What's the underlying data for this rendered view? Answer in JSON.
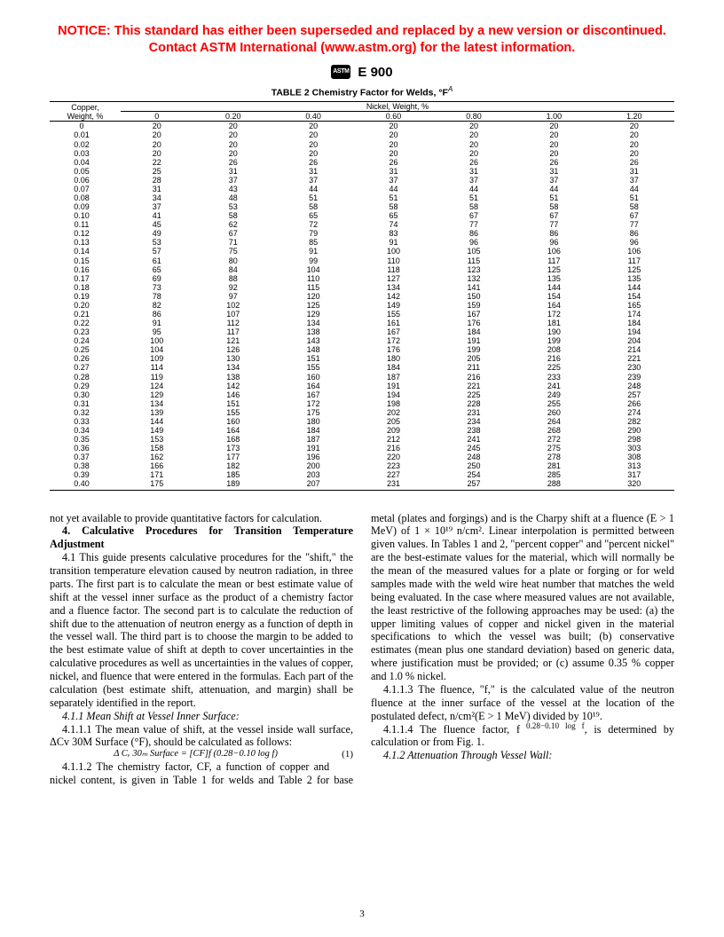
{
  "notice": {
    "line1": "NOTICE: This standard has either been superseded and replaced by a new version or discontinued.",
    "line2": "Contact ASTM International (www.astm.org) for the latest information."
  },
  "logo_text": "ASTM",
  "standard_number": "E 900",
  "table": {
    "caption": "TABLE 2  Chemistry Factor for Welds, °F",
    "caption_sup": "A",
    "row_label_l1": "Copper,",
    "row_label_l2": "Weight, %",
    "col_group_label": "Nickel, Weight, %",
    "nickel_headers": [
      "0",
      "0.20",
      "0.40",
      "0.60",
      "0.80",
      "1.00",
      "1.20"
    ],
    "rows": [
      {
        "cu": "0",
        "v": [
          "20",
          "20",
          "20",
          "20",
          "20",
          "20",
          "20"
        ]
      },
      {
        "cu": "0.01",
        "v": [
          "20",
          "20",
          "20",
          "20",
          "20",
          "20",
          "20"
        ]
      },
      {
        "cu": "0.02",
        "v": [
          "20",
          "20",
          "20",
          "20",
          "20",
          "20",
          "20"
        ]
      },
      {
        "cu": "0.03",
        "v": [
          "20",
          "20",
          "20",
          "20",
          "20",
          "20",
          "20"
        ]
      },
      {
        "cu": "0.04",
        "v": [
          "22",
          "26",
          "26",
          "26",
          "26",
          "26",
          "26"
        ]
      },
      {
        "cu": "0.05",
        "v": [
          "25",
          "31",
          "31",
          "31",
          "31",
          "31",
          "31"
        ]
      },
      {
        "cu": "0.06",
        "v": [
          "28",
          "37",
          "37",
          "37",
          "37",
          "37",
          "37"
        ]
      },
      {
        "cu": "0.07",
        "v": [
          "31",
          "43",
          "44",
          "44",
          "44",
          "44",
          "44"
        ]
      },
      {
        "cu": "0.08",
        "v": [
          "34",
          "48",
          "51",
          "51",
          "51",
          "51",
          "51"
        ]
      },
      {
        "cu": "0.09",
        "v": [
          "37",
          "53",
          "58",
          "58",
          "58",
          "58",
          "58"
        ]
      },
      {
        "cu": "0.10",
        "v": [
          "41",
          "58",
          "65",
          "65",
          "67",
          "67",
          "67"
        ]
      },
      {
        "cu": "0.11",
        "v": [
          "45",
          "62",
          "72",
          "74",
          "77",
          "77",
          "77"
        ]
      },
      {
        "cu": "0.12",
        "v": [
          "49",
          "67",
          "79",
          "83",
          "86",
          "86",
          "86"
        ]
      },
      {
        "cu": "0.13",
        "v": [
          "53",
          "71",
          "85",
          "91",
          "96",
          "96",
          "96"
        ]
      },
      {
        "cu": "0.14",
        "v": [
          "57",
          "75",
          "91",
          "100",
          "105",
          "106",
          "106"
        ]
      },
      {
        "cu": "0.15",
        "v": [
          "61",
          "80",
          "99",
          "110",
          "115",
          "117",
          "117"
        ]
      },
      {
        "cu": "0.16",
        "v": [
          "65",
          "84",
          "104",
          "118",
          "123",
          "125",
          "125"
        ]
      },
      {
        "cu": "0.17",
        "v": [
          "69",
          "88",
          "110",
          "127",
          "132",
          "135",
          "135"
        ]
      },
      {
        "cu": "0.18",
        "v": [
          "73",
          "92",
          "115",
          "134",
          "141",
          "144",
          "144"
        ]
      },
      {
        "cu": "0.19",
        "v": [
          "78",
          "97",
          "120",
          "142",
          "150",
          "154",
          "154"
        ]
      },
      {
        "cu": "0.20",
        "v": [
          "82",
          "102",
          "125",
          "149",
          "159",
          "164",
          "165"
        ]
      },
      {
        "cu": "0.21",
        "v": [
          "86",
          "107",
          "129",
          "155",
          "167",
          "172",
          "174"
        ]
      },
      {
        "cu": "0.22",
        "v": [
          "91",
          "112",
          "134",
          "161",
          "176",
          "181",
          "184"
        ]
      },
      {
        "cu": "0.23",
        "v": [
          "95",
          "117",
          "138",
          "167",
          "184",
          "190",
          "194"
        ]
      },
      {
        "cu": "0.24",
        "v": [
          "100",
          "121",
          "143",
          "172",
          "191",
          "199",
          "204"
        ]
      },
      {
        "cu": "0.25",
        "v": [
          "104",
          "126",
          "148",
          "176",
          "199",
          "208",
          "214"
        ]
      },
      {
        "cu": "0.26",
        "v": [
          "109",
          "130",
          "151",
          "180",
          "205",
          "216",
          "221"
        ]
      },
      {
        "cu": "0.27",
        "v": [
          "114",
          "134",
          "155",
          "184",
          "211",
          "225",
          "230"
        ]
      },
      {
        "cu": "0.28",
        "v": [
          "119",
          "138",
          "160",
          "187",
          "216",
          "233",
          "239"
        ]
      },
      {
        "cu": "0.29",
        "v": [
          "124",
          "142",
          "164",
          "191",
          "221",
          "241",
          "248"
        ]
      },
      {
        "cu": "0.30",
        "v": [
          "129",
          "146",
          "167",
          "194",
          "225",
          "249",
          "257"
        ]
      },
      {
        "cu": "0.31",
        "v": [
          "134",
          "151",
          "172",
          "198",
          "228",
          "255",
          "266"
        ]
      },
      {
        "cu": "0.32",
        "v": [
          "139",
          "155",
          "175",
          "202",
          "231",
          "260",
          "274"
        ]
      },
      {
        "cu": "0.33",
        "v": [
          "144",
          "160",
          "180",
          "205",
          "234",
          "264",
          "282"
        ]
      },
      {
        "cu": "0.34",
        "v": [
          "149",
          "164",
          "184",
          "209",
          "238",
          "268",
          "290"
        ]
      },
      {
        "cu": "0.35",
        "v": [
          "153",
          "168",
          "187",
          "212",
          "241",
          "272",
          "298"
        ]
      },
      {
        "cu": "0.36",
        "v": [
          "158",
          "173",
          "191",
          "216",
          "245",
          "275",
          "303"
        ]
      },
      {
        "cu": "0.37",
        "v": [
          "162",
          "177",
          "196",
          "220",
          "248",
          "278",
          "308"
        ]
      },
      {
        "cu": "0.38",
        "v": [
          "166",
          "182",
          "200",
          "223",
          "250",
          "281",
          "313"
        ]
      },
      {
        "cu": "0.39",
        "v": [
          "171",
          "185",
          "203",
          "227",
          "254",
          "285",
          "317"
        ]
      },
      {
        "cu": "0.40",
        "v": [
          "175",
          "189",
          "207",
          "231",
          "257",
          "288",
          "320"
        ]
      }
    ]
  },
  "body": {
    "p0": "not yet available to provide quantitative factors for calculation.",
    "sec4_head": "4. Calculative Procedures for Transition Temperature Adjustment",
    "p41": "4.1 This guide presents calculative procedures for the \"shift,\" the transition temperature elevation caused by neutron radiation, in three parts. The first part is to calculate the mean or best estimate value of shift at the vessel inner surface as the product of a chemistry factor and a fluence factor. The second part is to calculate the reduction of shift due to the attenuation of neutron energy as a function of depth in the vessel wall. The third part is to choose the margin to be added to the best estimate value of shift at depth to cover uncertainties in the calculative procedures as well as uncertainties in the values of copper, nickel, and fluence that were entered in the formulas. Each part of the calculation (best estimate shift, attenuation, and margin) shall be separately identified in the report.",
    "p411_head": "4.1.1 Mean Shift at Vessel Inner Surface:",
    "p4111": "4.1.1.1 The mean value of shift, at the vessel inside wall surface, ΔCv 30M Surface (°F), should be calculated as follows:",
    "eq1": "Δ Cᵥ 30ₘ Surface = [CF]f (0.28−0.10 log f)",
    "eq1_num": "(1)",
    "p4112": "4.1.1.2 The chemistry factor, CF, a function of copper and nickel content, is given in Table 1 for welds and Table 2 for base metal (plates and forgings) and is the Charpy shift at a fluence (E > 1 MeV) of 1 × 10¹⁹ n/cm². Linear interpolation is permitted between given values. In Tables 1 and 2, \"percent copper\" and \"percent nickel\" are the best-estimate values for the material, which will normally be the mean of the measured values for a plate or forging or for weld samples made with the weld wire heat number that matches the weld being evaluated. In the case where measured values are not available, the least restrictive of the following approaches may be used: (a) the upper limiting values of copper and nickel given in the material specifications to which the vessel was built; (b) conservative estimates (mean plus one standard deviation) based on generic data, where justification must be provided; or (c) assume 0.35 % copper and 1.0 % nickel.",
    "p4113": "4.1.1.3 The fluence, \"f,\" is the calculated value of the neutron fluence at the inner surface of the vessel at the location of the postulated defect, n/cm²(E > 1 MeV) divided by 10¹⁹.",
    "p4114_a": "4.1.1.4 The fluence factor, f",
    "p4114_exp": " 0.28−0.10 log f",
    "p4114_b": ", is determined by calculation or from Fig. 1.",
    "p412_head": "4.1.2 Attenuation Through Vessel Wall:"
  },
  "page_number": "3"
}
